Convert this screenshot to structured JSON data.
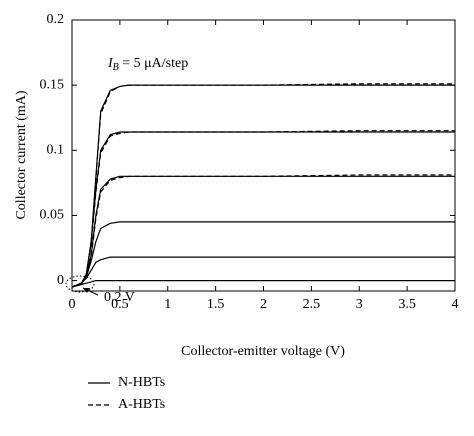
{
  "chart_data": {
    "type": "line",
    "xlabel": "Collector-emitter voltage (V)",
    "ylabel": "Collector current (mA)",
    "annotation": {
      "symbol": "I",
      "subscript": "B",
      "rest": " = 5 μA/step"
    },
    "arrow_label": "0.2 V",
    "x": [
      0,
      0.1,
      0.15,
      0.2,
      0.25,
      0.3,
      0.4,
      0.5,
      0.6,
      1,
      2,
      3,
      4
    ],
    "series": [
      {
        "name": "N-HBTs",
        "color": "#000000",
        "dash": false,
        "curves": [
          [
            -0.005,
            -0.003,
            -0.002,
            -0.001,
            0,
            0,
            0,
            0,
            0,
            0,
            0,
            0,
            0
          ],
          [
            -0.005,
            -0.002,
            0.002,
            0.008,
            0.014,
            0.016,
            0.018,
            0.018,
            0.018,
            0.018,
            0.018,
            0.018,
            0.018
          ],
          [
            -0.005,
            -0.002,
            0.003,
            0.015,
            0.03,
            0.04,
            0.044,
            0.045,
            0.045,
            0.045,
            0.045,
            0.045,
            0.045
          ],
          [
            -0.005,
            -0.002,
            0.004,
            0.02,
            0.05,
            0.07,
            0.078,
            0.08,
            0.08,
            0.08,
            0.08,
            0.08,
            0.08
          ],
          [
            -0.005,
            -0.002,
            0.005,
            0.03,
            0.07,
            0.1,
            0.112,
            0.114,
            0.114,
            0.114,
            0.114,
            0.114,
            0.114
          ],
          [
            -0.005,
            -0.002,
            0.005,
            0.03,
            0.08,
            0.13,
            0.146,
            0.149,
            0.15,
            0.15,
            0.15,
            0.15,
            0.15
          ]
        ]
      },
      {
        "name": "A-HBTs",
        "color": "#000000",
        "dash": true,
        "curves": [
          [
            -0.005,
            -0.002,
            0.004,
            0.018,
            0.048,
            0.068,
            0.077,
            0.079,
            0.08,
            0.08,
            0.08,
            0.081,
            0.081
          ],
          [
            -0.005,
            -0.002,
            0.005,
            0.028,
            0.068,
            0.098,
            0.111,
            0.113,
            0.114,
            0.114,
            0.114,
            0.115,
            0.115
          ],
          [
            -0.005,
            -0.002,
            0.005,
            0.028,
            0.078,
            0.128,
            0.145,
            0.149,
            0.15,
            0.15,
            0.15,
            0.151,
            0.151
          ]
        ]
      }
    ],
    "xlim": [
      0,
      4
    ],
    "ylim": [
      -0.008,
      0.2
    ],
    "xticks": [
      0,
      0.5,
      1,
      1.5,
      2,
      2.5,
      3,
      3.5,
      4
    ],
    "yticks": [
      0,
      0.05,
      0.1,
      0.15,
      0.2
    ]
  }
}
